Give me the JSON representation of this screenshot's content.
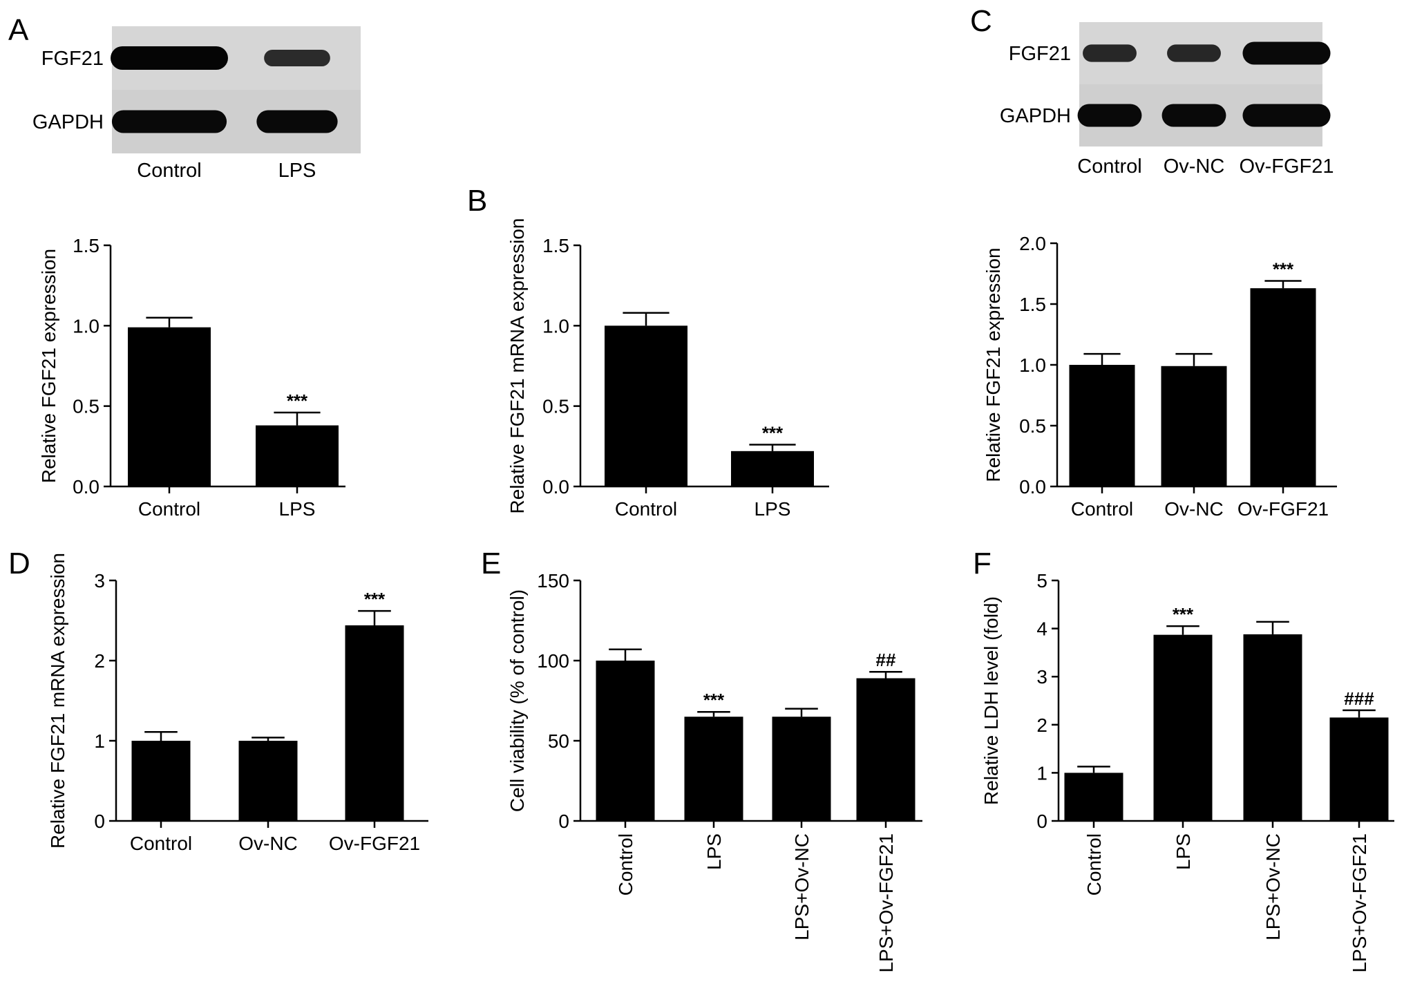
{
  "panel_letters": {
    "A": "A",
    "B": "B",
    "C": "C",
    "D": "D",
    "E": "E",
    "F": "F"
  },
  "blots": {
    "A": {
      "rows": [
        {
          "label": "FGF21",
          "intensities": [
            1.0,
            0.55
          ]
        },
        {
          "label": "GAPDH",
          "intensities": [
            0.95,
            0.95
          ]
        }
      ],
      "lanes": [
        "Control",
        "LPS"
      ]
    },
    "C": {
      "rows": [
        {
          "label": "FGF21",
          "intensities": [
            0.6,
            0.6,
            0.95
          ]
        },
        {
          "label": "GAPDH",
          "intensities": [
            0.95,
            0.95,
            0.95
          ]
        }
      ],
      "lanes": [
        "Control",
        "Ov-NC",
        "Ov-FGF21"
      ]
    }
  },
  "chart_data": [
    {
      "panel": "A",
      "type": "bar",
      "categories": [
        "Control",
        "LPS"
      ],
      "values": [
        0.99,
        0.38
      ],
      "errors": [
        0.06,
        0.08
      ],
      "significance": [
        "",
        "***"
      ],
      "ylabel": "Relative FGF21 expression",
      "ylim": [
        0,
        1.5
      ],
      "yticks": [
        "0.0",
        "0.5",
        "1.0",
        "1.5"
      ],
      "xlabel_rotation": "horizontal",
      "grid": false,
      "bar_color": "#000000"
    },
    {
      "panel": "B",
      "type": "bar",
      "categories": [
        "Control",
        "LPS"
      ],
      "values": [
        1.0,
        0.22
      ],
      "errors": [
        0.08,
        0.04
      ],
      "significance": [
        "",
        "***"
      ],
      "ylabel": "Relative FGF21 mRNA expression",
      "ylim": [
        0,
        1.5
      ],
      "yticks": [
        "0.0",
        "0.5",
        "1.0",
        "1.5"
      ],
      "xlabel_rotation": "horizontal",
      "grid": false,
      "bar_color": "#000000"
    },
    {
      "panel": "C",
      "type": "bar",
      "categories": [
        "Control",
        "Ov-NC",
        "Ov-FGF21"
      ],
      "values": [
        1.0,
        0.99,
        1.63
      ],
      "errors": [
        0.09,
        0.1,
        0.06
      ],
      "significance": [
        "",
        "",
        "***"
      ],
      "ylabel": "Relative FGF21 expression",
      "ylim": [
        0,
        2.0
      ],
      "yticks": [
        "0.0",
        "0.5",
        "1.0",
        "1.5",
        "2.0"
      ],
      "xlabel_rotation": "horizontal",
      "grid": false,
      "bar_color": "#000000"
    },
    {
      "panel": "D",
      "type": "bar",
      "categories": [
        "Control",
        "Ov-NC",
        "Ov-FGF21"
      ],
      "values": [
        1.0,
        1.0,
        2.44
      ],
      "errors": [
        0.11,
        0.04,
        0.18
      ],
      "significance": [
        "",
        "",
        "***"
      ],
      "ylabel": "Relative FGF21 mRNA expression",
      "ylim": [
        0,
        3
      ],
      "yticks": [
        "0",
        "1",
        "2",
        "3"
      ],
      "xlabel_rotation": "horizontal",
      "grid": false,
      "bar_color": "#000000"
    },
    {
      "panel": "E",
      "type": "bar",
      "categories": [
        "Control",
        "LPS",
        "LPS+Ov-NC",
        "LPS+Ov-FGF21"
      ],
      "values": [
        100,
        65,
        65,
        89
      ],
      "errors": [
        7,
        3,
        5,
        4
      ],
      "significance": [
        "",
        "***",
        "",
        "##"
      ],
      "ylabel": "Cell viability (% of control)",
      "ylim": [
        0,
        150
      ],
      "yticks": [
        "0",
        "50",
        "100",
        "150"
      ],
      "xlabel_rotation": "vertical",
      "grid": false,
      "bar_color": "#000000"
    },
    {
      "panel": "F",
      "type": "bar",
      "categories": [
        "Control",
        "LPS",
        "LPS+Ov-NC",
        "LPS+Ov-FGF21"
      ],
      "values": [
        1.0,
        3.87,
        3.88,
        2.15
      ],
      "errors": [
        0.13,
        0.18,
        0.26,
        0.15
      ],
      "significance": [
        "",
        "***",
        "",
        "###"
      ],
      "ylabel": "Relative LDH level (fold)",
      "ylim": [
        0,
        5
      ],
      "yticks": [
        "0",
        "1",
        "2",
        "3",
        "4",
        "5"
      ],
      "xlabel_rotation": "vertical",
      "grid": false,
      "bar_color": "#000000"
    }
  ]
}
